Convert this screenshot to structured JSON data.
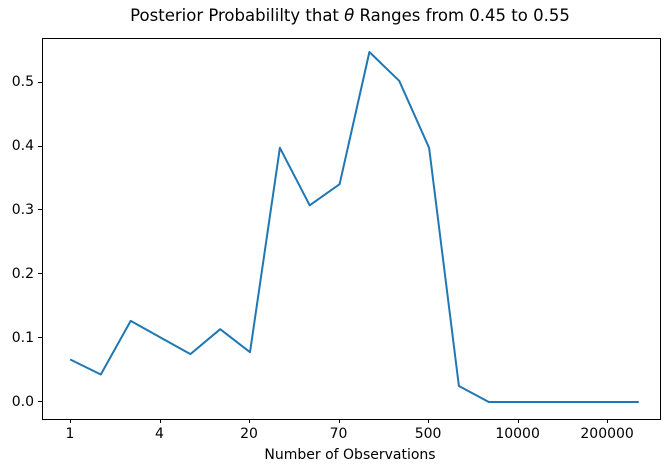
{
  "title": {
    "prefix": "Posterior Probabililty that ",
    "theta": "θ",
    "suffix": " Ranges from 0.45 to 0.55"
  },
  "xlabel": "Number of Observations",
  "colors": {
    "line": "#1f77b4",
    "axis": "#000000",
    "background": "#ffffff",
    "text": "#000000"
  },
  "chart_data": {
    "type": "line",
    "title": "Posterior Probabililty that θ Ranges from 0.45 to 0.55",
    "xlabel": "Number of Observations",
    "ylabel": "",
    "grid": false,
    "legend": null,
    "x_axis_note": "20 evenly spaced sample points (indices 0-19); tick labels shown at every 3rd point",
    "xticks": {
      "positions": [
        0,
        3,
        6,
        9,
        12,
        15,
        18
      ],
      "labels": [
        "1",
        "4",
        "20",
        "70",
        "500",
        "10000",
        "200000"
      ]
    },
    "yticks": [
      0.0,
      0.1,
      0.2,
      0.3,
      0.4,
      0.5
    ],
    "ytick_labels": [
      "0.0",
      "0.1",
      "0.2",
      "0.3",
      "0.4",
      "0.5"
    ],
    "ylim": [
      -0.027,
      0.568
    ],
    "series": [
      {
        "name": "posterior probability",
        "color": "#1f77b4",
        "values": [
          0.066,
          0.043,
          0.127,
          0.101,
          0.075,
          0.114,
          0.078,
          0.398,
          0.308,
          0.341,
          0.548,
          0.503,
          0.398,
          0.025,
          0.0,
          0.0,
          0.0,
          0.0,
          0.0,
          0.0
        ]
      }
    ]
  }
}
